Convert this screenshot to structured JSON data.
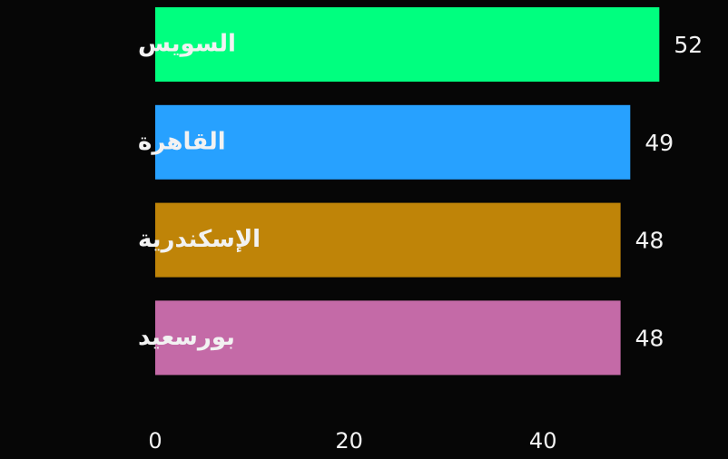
{
  "chart_data": {
    "type": "bar",
    "orientation": "horizontal",
    "categories": [
      "السويس",
      "القاهرة",
      "الإسكندرية",
      "بورسعيد"
    ],
    "values": [
      52,
      49,
      48,
      48
    ],
    "colors": [
      "#00ff7f",
      "#27a1ff",
      "#bf8408",
      "#c46aa7"
    ],
    "xlim": [
      0,
      52
    ],
    "xticks": [
      0,
      20,
      40
    ],
    "xtick_labels": [
      "0",
      "20",
      "40"
    ],
    "grid": false,
    "background": "#060606"
  }
}
